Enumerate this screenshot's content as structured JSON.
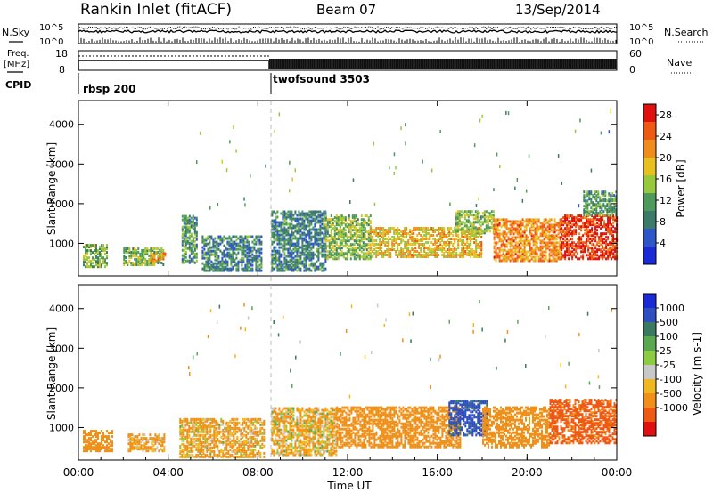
{
  "header": {
    "title": "Rankin Inlet (fitACF)",
    "beam": "Beam 07",
    "date": "13/Sep/2014"
  },
  "strips": {
    "nsky_label": "N.Sky",
    "nsearch_label": "N.Search",
    "nsky_ticks": [
      "10^5",
      "10^0"
    ],
    "nsearch_ticks": [
      "10^5",
      "10^0"
    ],
    "freq_label_1": "Freq.",
    "freq_label_2": "[MHz]",
    "freq_ticks": [
      "18",
      "8"
    ],
    "nave_label": "Nave",
    "nave_ticks": [
      "60",
      "0"
    ],
    "cpid_label": "CPID",
    "cpid_segments": [
      {
        "name": "rbsp 200",
        "start_hour": 0,
        "end_hour": 8.5
      },
      {
        "name": "twofsound 3503",
        "start_hour": 8.5,
        "end_hour": 24
      }
    ]
  },
  "chart_data": [
    {
      "type": "heatmap",
      "panel": "power",
      "ylabel": "Slant Range [km]",
      "xlim": [
        0,
        24
      ],
      "ylim": [
        180,
        4600
      ],
      "yticks": [
        "1000",
        "2000",
        "3000",
        "4000"
      ],
      "colorbar": {
        "label": "Power [dB]",
        "ticks": [
          "28",
          "24",
          "20",
          "16",
          "12",
          "8",
          "4"
        ],
        "range": [
          0,
          30
        ],
        "colors": [
          "#1a2bd6",
          "#2f56c8",
          "#3c7a6a",
          "#4e9a5a",
          "#98c83c",
          "#e8c020",
          "#f08c1c",
          "#ee5a14",
          "#e01010"
        ]
      },
      "regions": [
        {
          "x0": 0.2,
          "x1": 1.3,
          "y0": 400,
          "y1": 950,
          "val": 13
        },
        {
          "x0": 2.0,
          "x1": 3.8,
          "y0": 450,
          "y1": 900,
          "val": 14
        },
        {
          "x0": 3.2,
          "x1": 3.9,
          "y0": 550,
          "y1": 750,
          "val": 20
        },
        {
          "x0": 4.6,
          "x1": 5.3,
          "y0": 500,
          "y1": 1700,
          "val": 11
        },
        {
          "x0": 5.5,
          "x1": 8.2,
          "y0": 300,
          "y1": 1200,
          "val": 9
        },
        {
          "x0": 8.6,
          "x1": 11.0,
          "y0": 300,
          "y1": 1800,
          "val": 9
        },
        {
          "x0": 11.0,
          "x1": 13.0,
          "y0": 600,
          "y1": 1700,
          "val": 14
        },
        {
          "x0": 13.0,
          "x1": 18.0,
          "y0": 650,
          "y1": 1400,
          "val": 19
        },
        {
          "x0": 16.8,
          "x1": 18.5,
          "y0": 1250,
          "y1": 1800,
          "val": 14
        },
        {
          "x0": 18.5,
          "x1": 21.5,
          "y0": 550,
          "y1": 1600,
          "val": 22
        },
        {
          "x0": 21.5,
          "x1": 24.0,
          "y0": 600,
          "y1": 1700,
          "val": 27
        },
        {
          "x0": 22.5,
          "x1": 24.0,
          "y0": 1700,
          "y1": 2300,
          "val": 11
        }
      ]
    },
    {
      "type": "heatmap",
      "panel": "velocity",
      "xlabel": "Time UT",
      "ylabel": "Slant Range [km]",
      "xlim": [
        0,
        24
      ],
      "ylim": [
        180,
        4600
      ],
      "xticks": [
        "00:00",
        "04:00",
        "08:00",
        "12:00",
        "16:00",
        "20:00",
        "00:00"
      ],
      "yticks": [
        "1000",
        "2000",
        "3000",
        "4000"
      ],
      "colorbar": {
        "label": "Velocity [m s-1]",
        "ticks": [
          "1000",
          "500",
          "100",
          "25",
          "-25",
          "-100",
          "-500",
          "-1000"
        ],
        "colors": [
          "#1a2bd6",
          "#2f4ec0",
          "#3a7a60",
          "#5aa850",
          "#8ccc40",
          "#c8c8c8",
          "#f0b820",
          "#f09018",
          "#ee5a14",
          "#e01010"
        ]
      },
      "regions": [
        {
          "x0": 0.2,
          "x1": 1.5,
          "y0": 400,
          "y1": 900,
          "val": -300
        },
        {
          "x0": 2.2,
          "x1": 3.8,
          "y0": 400,
          "y1": 850,
          "val": -150
        },
        {
          "x0": 4.5,
          "x1": 8.3,
          "y0": 250,
          "y1": 1200,
          "val": -120
        },
        {
          "x0": 8.6,
          "x1": 11.5,
          "y0": 300,
          "y1": 1500,
          "val": -100
        },
        {
          "x0": 11.5,
          "x1": 17.0,
          "y0": 500,
          "y1": 1500,
          "val": -300
        },
        {
          "x0": 16.5,
          "x1": 18.2,
          "y0": 800,
          "y1": 1700,
          "val": 600
        },
        {
          "x0": 18.0,
          "x1": 21.0,
          "y0": 500,
          "y1": 1500,
          "val": -250
        },
        {
          "x0": 21.0,
          "x1": 24.0,
          "y0": 600,
          "y1": 1700,
          "val": -600
        }
      ]
    }
  ]
}
